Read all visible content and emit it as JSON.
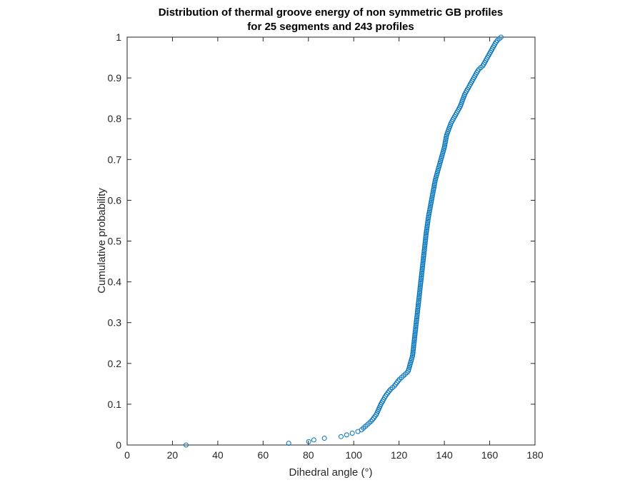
{
  "chart_data": {
    "type": "scatter",
    "title": [
      "Distribution of thermal groove energy of non symmetric GB profiles",
      "for 25 segments and 243 profiles"
    ],
    "xlabel": "Dihedral angle (°)",
    "ylabel": "Cumulative probability",
    "xlim": [
      0,
      180
    ],
    "ylim": [
      0,
      1
    ],
    "xticks": [
      0,
      20,
      40,
      60,
      80,
      100,
      120,
      140,
      160,
      180
    ],
    "yticks": [
      0,
      0.1,
      0.2,
      0.3,
      0.4,
      0.5,
      0.6,
      0.7,
      0.8,
      0.9,
      1
    ],
    "ytick_labels": [
      "0",
      "0.1",
      "0.2",
      "0.3",
      "0.4",
      "0.5",
      "0.6",
      "0.7",
      "0.8",
      "0.9",
      "1"
    ],
    "grid": false,
    "legend": "none",
    "marker": "open circle",
    "series_color": "#0072BD",
    "n_points": 243,
    "series": [
      {
        "curve_nodes": {
          "x": [
            26,
            71,
            80,
            82,
            86,
            94,
            97,
            100,
            103,
            105,
            108,
            110,
            112,
            114,
            116,
            118,
            120,
            122,
            124,
            126,
            127,
            128,
            129,
            130,
            131,
            132,
            133,
            134,
            135,
            136,
            138,
            140,
            141,
            143,
            145,
            147,
            149,
            151,
            153,
            155,
            157,
            159,
            161,
            163,
            165
          ],
          "y": [
            0,
            0.004,
            0.008,
            0.012,
            0.016,
            0.02,
            0.025,
            0.03,
            0.035,
            0.045,
            0.06,
            0.075,
            0.1,
            0.12,
            0.135,
            0.145,
            0.16,
            0.17,
            0.18,
            0.22,
            0.27,
            0.32,
            0.37,
            0.42,
            0.47,
            0.52,
            0.56,
            0.59,
            0.62,
            0.65,
            0.69,
            0.73,
            0.76,
            0.79,
            0.81,
            0.83,
            0.86,
            0.88,
            0.9,
            0.92,
            0.93,
            0.95,
            0.97,
            0.99,
            1.0
          ]
        }
      }
    ]
  }
}
